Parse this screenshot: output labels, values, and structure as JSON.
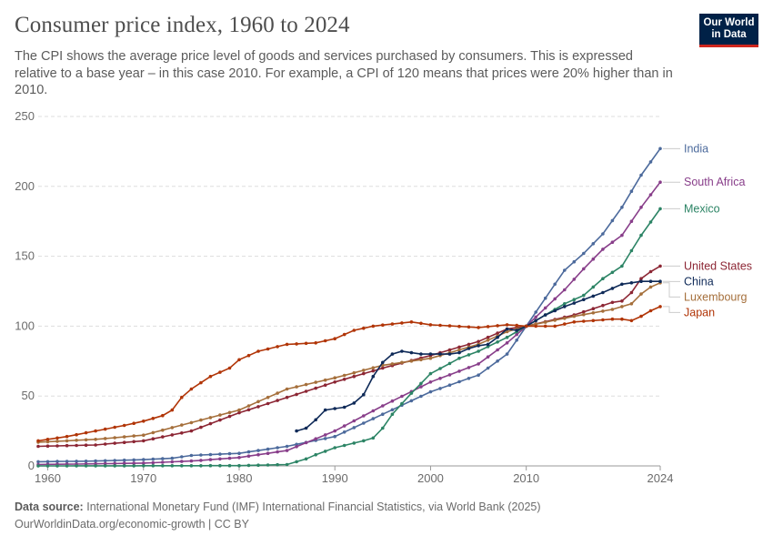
{
  "title": "Consumer price index, 1960 to 2024",
  "subtitle": "The CPI shows the average price level of goods and services purchased by consumers. This is expressed relative to a base year – in this case 2010. For example, a CPI of 120 means that prices were 20% higher than in 2010.",
  "logo": {
    "line1": "Our World",
    "line2": "in Data",
    "bg": "#002147",
    "accent": "#ce261e"
  },
  "footer": {
    "source_label": "Data source:",
    "source_text": "International Monetary Fund (IMF) International Financial Statistics, via World Bank (2025)",
    "url_license": "OurWorldinData.org/economic-growth | CC BY"
  },
  "chart_data": {
    "type": "line",
    "title": "Consumer price index, 1960 to 2024",
    "xlim": [
      1959,
      2024
    ],
    "ylim": [
      0,
      250
    ],
    "yticks": [
      0,
      50,
      100,
      150,
      200,
      250
    ],
    "xticks": [
      1960,
      1970,
      1980,
      1990,
      2000,
      2010,
      2024
    ],
    "grid": "horizontal dashed",
    "legend": "right, inline labels",
    "series": [
      {
        "name": "India",
        "color": "#4c6a9c",
        "points": [
          [
            1959,
            3
          ],
          [
            1965,
            3.5
          ],
          [
            1970,
            4.5
          ],
          [
            1973,
            5.5
          ],
          [
            1975,
            7.5
          ],
          [
            1980,
            9
          ],
          [
            1985,
            14
          ],
          [
            1990,
            21
          ],
          [
            1995,
            37
          ],
          [
            2000,
            53
          ],
          [
            2005,
            65
          ],
          [
            2008,
            80
          ],
          [
            2010,
            100
          ],
          [
            2012,
            120
          ],
          [
            2014,
            140
          ],
          [
            2016,
            152
          ],
          [
            2018,
            166
          ],
          [
            2020,
            185
          ],
          [
            2022,
            208
          ],
          [
            2024,
            227
          ]
        ]
      },
      {
        "name": "South Africa",
        "color": "#883e8a",
        "points": [
          [
            1959,
            1
          ],
          [
            1965,
            1.5
          ],
          [
            1970,
            2
          ],
          [
            1975,
            3.5
          ],
          [
            1980,
            6
          ],
          [
            1985,
            11
          ],
          [
            1990,
            25
          ],
          [
            1995,
            43
          ],
          [
            2000,
            60
          ],
          [
            2005,
            73
          ],
          [
            2008,
            88
          ],
          [
            2010,
            100
          ],
          [
            2012,
            113
          ],
          [
            2014,
            126
          ],
          [
            2016,
            141
          ],
          [
            2018,
            155
          ],
          [
            2020,
            165
          ],
          [
            2022,
            185
          ],
          [
            2024,
            203
          ]
        ]
      },
      {
        "name": "Mexico",
        "color": "#2c8465",
        "points": [
          [
            1959,
            0
          ],
          [
            1980,
            0.2
          ],
          [
            1985,
            1
          ],
          [
            1987,
            5
          ],
          [
            1988,
            8
          ],
          [
            1990,
            13
          ],
          [
            1993,
            18
          ],
          [
            1994,
            20
          ],
          [
            1995,
            27
          ],
          [
            1996,
            37
          ],
          [
            1998,
            52
          ],
          [
            2000,
            66
          ],
          [
            2003,
            77
          ],
          [
            2005,
            82
          ],
          [
            2008,
            92
          ],
          [
            2010,
            100
          ],
          [
            2012,
            108
          ],
          [
            2014,
            116
          ],
          [
            2016,
            122
          ],
          [
            2018,
            134
          ],
          [
            2020,
            143
          ],
          [
            2022,
            165
          ],
          [
            2024,
            184
          ]
        ]
      },
      {
        "name": "United States",
        "color": "#8c2634",
        "points": [
          [
            1959,
            14
          ],
          [
            1965,
            15
          ],
          [
            1970,
            18
          ],
          [
            1975,
            25
          ],
          [
            1980,
            38
          ],
          [
            1985,
            49
          ],
          [
            1990,
            60
          ],
          [
            1995,
            70
          ],
          [
            2000,
            79
          ],
          [
            2005,
            89
          ],
          [
            2008,
            98
          ],
          [
            2010,
            100
          ],
          [
            2015,
            108
          ],
          [
            2019,
            117
          ],
          [
            2020,
            118
          ],
          [
            2021,
            124
          ],
          [
            2022,
            134
          ],
          [
            2023,
            139
          ],
          [
            2024,
            143
          ]
        ]
      },
      {
        "name": "Luxembourg",
        "color": "#a56f3b",
        "points": [
          [
            1959,
            17
          ],
          [
            1965,
            19
          ],
          [
            1970,
            22
          ],
          [
            1975,
            31
          ],
          [
            1980,
            40
          ],
          [
            1985,
            55
          ],
          [
            1990,
            63
          ],
          [
            1995,
            72
          ],
          [
            2000,
            77
          ],
          [
            2005,
            87
          ],
          [
            2008,
            96
          ],
          [
            2010,
            100
          ],
          [
            2015,
            107
          ],
          [
            2019,
            112
          ],
          [
            2020,
            114
          ],
          [
            2021,
            116
          ],
          [
            2022,
            123
          ],
          [
            2023,
            128
          ],
          [
            2024,
            131
          ]
        ]
      },
      {
        "name": "China",
        "color": "#0f2a58",
        "points": [
          [
            1986,
            25
          ],
          [
            1987,
            27
          ],
          [
            1988,
            33
          ],
          [
            1989,
            40
          ],
          [
            1990,
            41
          ],
          [
            1991,
            42
          ],
          [
            1992,
            45
          ],
          [
            1993,
            51
          ],
          [
            1994,
            64
          ],
          [
            1995,
            74
          ],
          [
            1996,
            80
          ],
          [
            1997,
            82
          ],
          [
            1998,
            81
          ],
          [
            1999,
            80
          ],
          [
            2000,
            80
          ],
          [
            2002,
            80
          ],
          [
            2003,
            81
          ],
          [
            2004,
            84
          ],
          [
            2005,
            86
          ],
          [
            2006,
            87
          ],
          [
            2007,
            92
          ],
          [
            2008,
            98
          ],
          [
            2009,
            97
          ],
          [
            2010,
            100
          ],
          [
            2012,
            108
          ],
          [
            2014,
            114
          ],
          [
            2016,
            119
          ],
          [
            2018,
            124
          ],
          [
            2020,
            130
          ],
          [
            2022,
            132
          ],
          [
            2024,
            132
          ]
        ]
      },
      {
        "name": "Japan",
        "color": "#b13507",
        "points": [
          [
            1959,
            18
          ],
          [
            1962,
            21
          ],
          [
            1965,
            25
          ],
          [
            1968,
            29
          ],
          [
            1970,
            32
          ],
          [
            1972,
            36
          ],
          [
            1973,
            40
          ],
          [
            1974,
            49
          ],
          [
            1975,
            55
          ],
          [
            1977,
            64
          ],
          [
            1979,
            70
          ],
          [
            1980,
            76
          ],
          [
            1982,
            82
          ],
          [
            1985,
            87
          ],
          [
            1988,
            88
          ],
          [
            1990,
            91
          ],
          [
            1992,
            97
          ],
          [
            1994,
            100
          ],
          [
            1998,
            103
          ],
          [
            2000,
            101
          ],
          [
            2005,
            99
          ],
          [
            2008,
            101
          ],
          [
            2010,
            100
          ],
          [
            2013,
            100
          ],
          [
            2015,
            103
          ],
          [
            2019,
            105
          ],
          [
            2020,
            105
          ],
          [
            2021,
            104
          ],
          [
            2022,
            107
          ],
          [
            2023,
            111
          ],
          [
            2024,
            114
          ]
        ]
      }
    ]
  }
}
